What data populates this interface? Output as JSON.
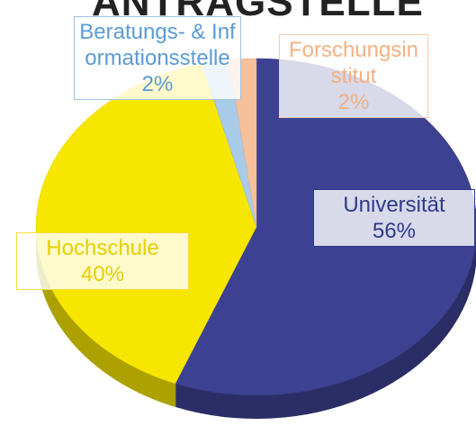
{
  "chart_data": {
    "type": "pie",
    "title": "ANTRAGSTELLE",
    "categories": [
      "Universität",
      "Hochschule",
      "Beratungs- & Informationsstelle",
      "Forschungsinstitut"
    ],
    "values": [
      56,
      40,
      2,
      2
    ],
    "value_labels": [
      "56%",
      "40%",
      "2%",
      "2%"
    ],
    "colors": [
      "#3d4191",
      "#f7e600",
      "#a9cbea",
      "#f5c09a"
    ]
  }
}
